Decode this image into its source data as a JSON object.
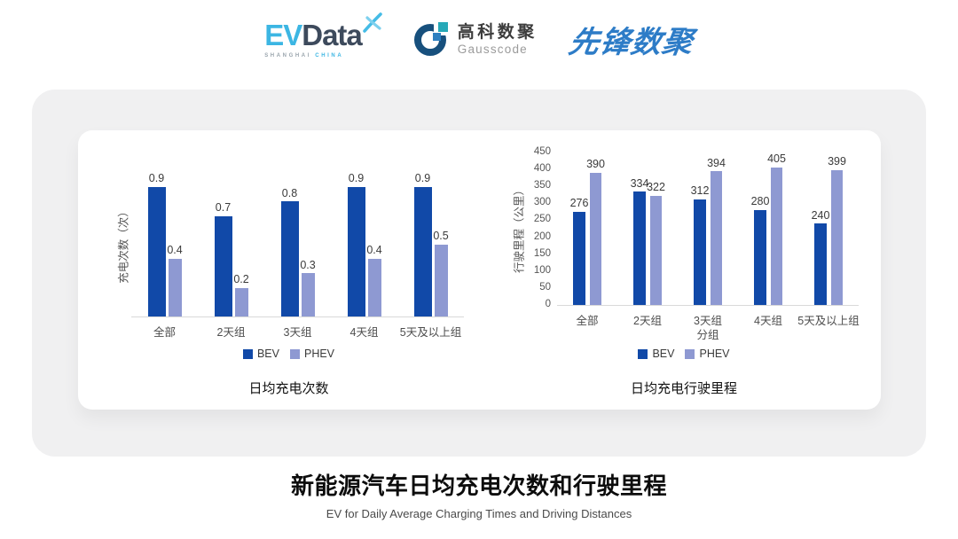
{
  "header": {
    "evdata": {
      "part1": "EV",
      "part2": "Data",
      "tagline_left": "SHANGHAI",
      "tagline_right": "CHINA"
    },
    "gausscode": {
      "name_cn": "高科数聚",
      "name_en": "Gausscode"
    },
    "pioneer": {
      "name": "先锋数聚"
    }
  },
  "colors": {
    "bev": "#1149A8",
    "phev": "#8E99D2",
    "accent_cyan": "#3CB6E3",
    "brand_navy": "#17507D",
    "pioneer_blue": "#2D7CC7"
  },
  "chart_data": [
    {
      "type": "bar",
      "title": "日均充电次数",
      "ylabel": "充电次数（次）",
      "xlabel": "",
      "categories": [
        "全部",
        "2天组",
        "3天组",
        "4天组",
        "5天及以上组"
      ],
      "series": [
        {
          "name": "BEV",
          "values": [
            0.9,
            0.7,
            0.8,
            0.9,
            0.9
          ]
        },
        {
          "name": "PHEV",
          "values": [
            0.4,
            0.2,
            0.3,
            0.4,
            0.5
          ]
        }
      ],
      "ylim": [
        0,
        1.0
      ],
      "yticks": [],
      "grid": false,
      "legend_position": "bottom"
    },
    {
      "type": "bar",
      "title": "日均充电行驶里程",
      "ylabel": "行驶里程（公里）",
      "xlabel": "分组",
      "categories": [
        "全部",
        "2天组",
        "3天组",
        "4天组",
        "5天及以上组"
      ],
      "series": [
        {
          "name": "BEV",
          "values": [
            276,
            334,
            312,
            280,
            240
          ]
        },
        {
          "name": "PHEV",
          "values": [
            390,
            322,
            394,
            405,
            399
          ]
        }
      ],
      "ylim": [
        0,
        450
      ],
      "yticks": [
        0,
        50,
        100,
        150,
        200,
        250,
        300,
        350,
        400,
        450
      ],
      "grid": false,
      "legend_position": "bottom"
    }
  ],
  "footer": {
    "title": "新能源汽车日均充电次数和行驶里程",
    "subtitle": "EV for Daily Average Charging Times and Driving Distances"
  }
}
